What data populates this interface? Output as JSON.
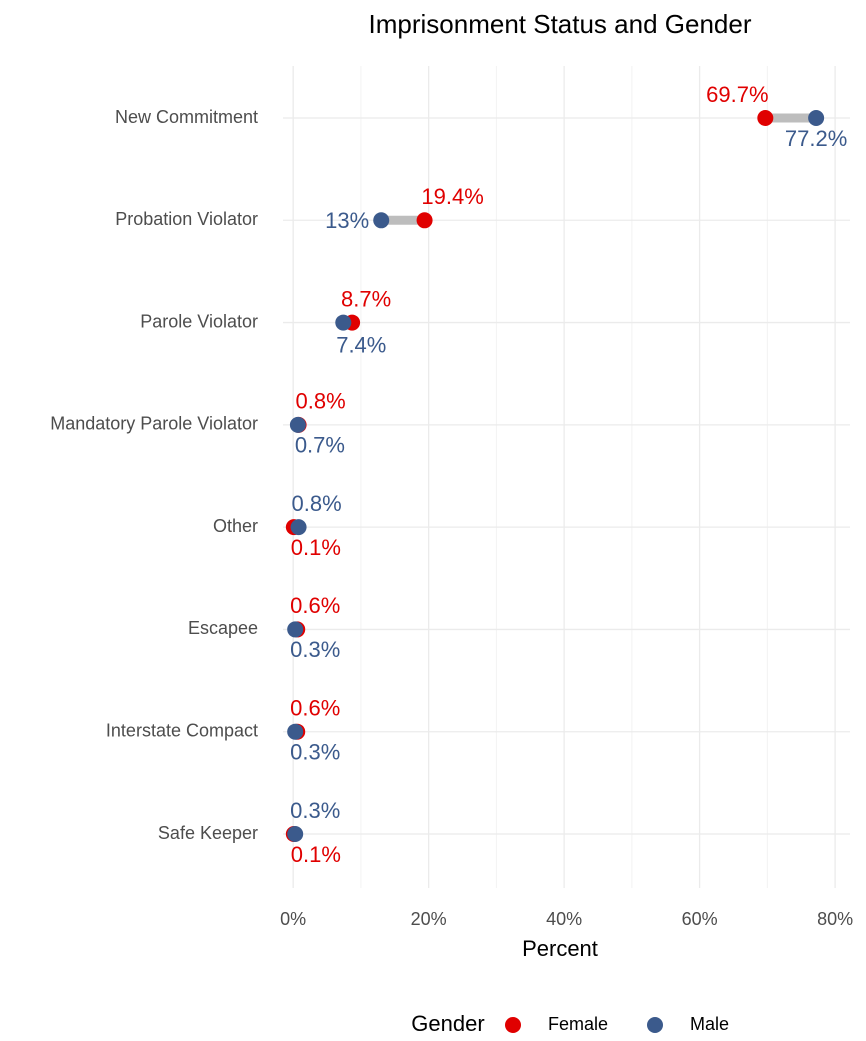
{
  "chart_data": {
    "type": "dumbbell",
    "title": "Imprisonment Status and Gender",
    "x_label": "Percent",
    "categories": [
      "New Commitment",
      "Probation Violator",
      "Parole Violator",
      "Mandatory Parole Violator",
      "Other",
      "Escapee",
      "Interstate Compact",
      "Safe Keeper"
    ],
    "series": [
      {
        "name": "Female",
        "color": "#e00000",
        "values": [
          69.7,
          19.4,
          8.7,
          0.8,
          0.1,
          0.6,
          0.6,
          0.1
        ],
        "value_labels": [
          "69.7%",
          "19.4%",
          "8.7%",
          "0.8%",
          "0.1%",
          "0.6%",
          "0.6%",
          "0.1%"
        ]
      },
      {
        "name": "Male",
        "color": "#3b5a8c",
        "values": [
          77.2,
          13,
          7.4,
          0.7,
          0.8,
          0.3,
          0.3,
          0.3
        ],
        "value_labels": [
          "77.2%",
          "13%",
          "7.4%",
          "0.7%",
          "0.8%",
          "0.3%",
          "0.3%",
          "0.3%"
        ]
      }
    ],
    "segment_color": "#bdbdbd",
    "xlim": [
      -1.5,
      82.2
    ],
    "xticks": [
      {
        "value": 0,
        "label": "0%"
      },
      {
        "value": 20,
        "label": "20%"
      },
      {
        "value": 40,
        "label": "40%"
      },
      {
        "value": 60,
        "label": "60%"
      },
      {
        "value": 80,
        "label": "80%"
      }
    ],
    "xminor": [
      10,
      30,
      50,
      70
    ],
    "grid": true,
    "legend_title": "Gender",
    "legend": "bottom"
  }
}
